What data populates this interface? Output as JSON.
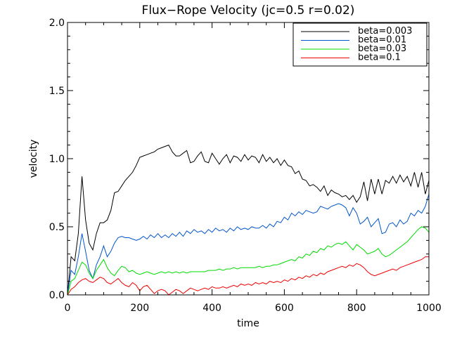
{
  "chart_data": {
    "type": "line",
    "title": "Flux−Rope Velocity (jc=0.5 r=0.02)",
    "xlabel": "time",
    "ylabel": "velocity",
    "xlim": [
      0,
      1000
    ],
    "ylim": [
      0,
      2
    ],
    "x_ticks": [
      0,
      200,
      400,
      600,
      800,
      1000
    ],
    "x_tick_labels": [
      "0",
      "200",
      "400",
      "600",
      "800",
      "1000"
    ],
    "y_ticks": [
      0,
      0.5,
      1,
      1.5,
      2
    ],
    "y_tick_labels": [
      "0.0",
      "0.5",
      "1.0",
      "1.5",
      "2.0"
    ],
    "legend_position": "top-right",
    "series": [
      {
        "name": "beta=0.003",
        "color": "#000000",
        "x": [
          0,
          10,
          20,
          30,
          40,
          50,
          60,
          70,
          80,
          90,
          100,
          110,
          120,
          130,
          140,
          150,
          160,
          170,
          180,
          190,
          200,
          210,
          220,
          230,
          240,
          250,
          260,
          270,
          280,
          290,
          300,
          310,
          320,
          330,
          340,
          350,
          360,
          370,
          380,
          390,
          400,
          410,
          420,
          430,
          440,
          450,
          460,
          470,
          480,
          490,
          500,
          510,
          520,
          530,
          540,
          550,
          560,
          570,
          580,
          590,
          600,
          610,
          620,
          630,
          640,
          650,
          660,
          670,
          680,
          690,
          700,
          710,
          720,
          730,
          740,
          750,
          760,
          770,
          780,
          790,
          800,
          810,
          820,
          830,
          840,
          850,
          860,
          870,
          880,
          890,
          900,
          910,
          920,
          930,
          940,
          950,
          960,
          970,
          980,
          990,
          1000
        ],
        "y": [
          0.0,
          0.28,
          0.25,
          0.45,
          0.87,
          0.55,
          0.38,
          0.33,
          0.45,
          0.53,
          0.53,
          0.55,
          0.62,
          0.75,
          0.76,
          0.8,
          0.84,
          0.87,
          0.9,
          0.95,
          1.01,
          1.02,
          1.03,
          1.04,
          1.05,
          1.07,
          1.08,
          1.09,
          1.1,
          1.05,
          1.02,
          1.02,
          1.04,
          1.06,
          0.97,
          0.98,
          1.02,
          1.05,
          0.98,
          0.97,
          1.04,
          1.0,
          0.96,
          1.0,
          1.03,
          0.97,
          1.02,
          1.01,
          0.98,
          1.03,
          0.99,
          1.02,
          1.01,
          0.97,
          1.03,
          0.98,
          1.01,
          0.97,
          1.0,
          0.95,
          0.99,
          0.95,
          0.94,
          0.89,
          0.91,
          0.85,
          0.84,
          0.8,
          0.81,
          0.79,
          0.76,
          0.8,
          0.73,
          0.77,
          0.75,
          0.74,
          0.72,
          0.73,
          0.7,
          0.73,
          0.68,
          0.72,
          0.83,
          0.69,
          0.85,
          0.74,
          0.85,
          0.74,
          0.84,
          0.82,
          0.87,
          0.82,
          0.88,
          0.83,
          0.87,
          0.8,
          0.9,
          0.79,
          0.9,
          0.74,
          0.84
        ]
      },
      {
        "name": "beta=0.01",
        "color": "#0055cc",
        "x": [
          0,
          10,
          20,
          30,
          40,
          50,
          60,
          70,
          80,
          90,
          100,
          110,
          120,
          130,
          140,
          150,
          160,
          170,
          180,
          190,
          200,
          210,
          220,
          230,
          240,
          250,
          260,
          270,
          280,
          290,
          300,
          310,
          320,
          330,
          340,
          350,
          360,
          370,
          380,
          390,
          400,
          410,
          420,
          430,
          440,
          450,
          460,
          470,
          480,
          490,
          500,
          510,
          520,
          530,
          540,
          550,
          560,
          570,
          580,
          590,
          600,
          610,
          620,
          630,
          640,
          650,
          660,
          670,
          680,
          690,
          700,
          710,
          720,
          730,
          740,
          750,
          760,
          770,
          780,
          790,
          800,
          810,
          820,
          830,
          840,
          850,
          860,
          870,
          880,
          890,
          900,
          910,
          920,
          930,
          940,
          950,
          960,
          970,
          980,
          990,
          1000
        ],
        "y": [
          0.0,
          0.18,
          0.15,
          0.28,
          0.45,
          0.32,
          0.18,
          0.12,
          0.22,
          0.28,
          0.36,
          0.28,
          0.32,
          0.38,
          0.42,
          0.43,
          0.42,
          0.42,
          0.41,
          0.4,
          0.41,
          0.43,
          0.41,
          0.44,
          0.42,
          0.45,
          0.42,
          0.44,
          0.42,
          0.45,
          0.43,
          0.46,
          0.43,
          0.47,
          0.45,
          0.48,
          0.46,
          0.47,
          0.45,
          0.48,
          0.46,
          0.49,
          0.47,
          0.48,
          0.46,
          0.49,
          0.47,
          0.5,
          0.48,
          0.49,
          0.48,
          0.5,
          0.49,
          0.49,
          0.51,
          0.49,
          0.52,
          0.5,
          0.54,
          0.53,
          0.57,
          0.55,
          0.6,
          0.58,
          0.61,
          0.59,
          0.62,
          0.61,
          0.6,
          0.61,
          0.65,
          0.64,
          0.63,
          0.65,
          0.66,
          0.67,
          0.66,
          0.64,
          0.58,
          0.64,
          0.6,
          0.52,
          0.54,
          0.57,
          0.5,
          0.53,
          0.56,
          0.45,
          0.46,
          0.52,
          0.53,
          0.5,
          0.55,
          0.52,
          0.54,
          0.6,
          0.58,
          0.62,
          0.6,
          0.65,
          0.74
        ]
      },
      {
        "name": "beta=0.03",
        "color": "#00dd00",
        "x": [
          0,
          10,
          20,
          30,
          40,
          50,
          60,
          70,
          80,
          90,
          100,
          110,
          120,
          130,
          140,
          150,
          160,
          170,
          180,
          190,
          200,
          210,
          220,
          230,
          240,
          250,
          260,
          270,
          280,
          290,
          300,
          310,
          320,
          330,
          340,
          350,
          360,
          370,
          380,
          390,
          400,
          410,
          420,
          430,
          440,
          450,
          460,
          470,
          480,
          490,
          500,
          510,
          520,
          530,
          540,
          550,
          560,
          570,
          580,
          590,
          600,
          610,
          620,
          630,
          640,
          650,
          660,
          670,
          680,
          690,
          700,
          710,
          720,
          730,
          740,
          750,
          760,
          770,
          780,
          790,
          800,
          810,
          820,
          830,
          840,
          850,
          860,
          870,
          880,
          890,
          900,
          910,
          920,
          930,
          940,
          950,
          960,
          970,
          980,
          990,
          1000
        ],
        "y": [
          0.0,
          0.1,
          0.12,
          0.18,
          0.24,
          0.22,
          0.16,
          0.12,
          0.18,
          0.22,
          0.26,
          0.2,
          0.16,
          0.14,
          0.18,
          0.21,
          0.2,
          0.17,
          0.18,
          0.16,
          0.15,
          0.16,
          0.17,
          0.16,
          0.15,
          0.16,
          0.17,
          0.16,
          0.17,
          0.16,
          0.17,
          0.16,
          0.17,
          0.16,
          0.17,
          0.17,
          0.17,
          0.17,
          0.17,
          0.18,
          0.18,
          0.18,
          0.19,
          0.18,
          0.19,
          0.19,
          0.2,
          0.19,
          0.2,
          0.2,
          0.2,
          0.2,
          0.2,
          0.21,
          0.2,
          0.21,
          0.21,
          0.22,
          0.22,
          0.23,
          0.24,
          0.25,
          0.26,
          0.25,
          0.28,
          0.27,
          0.3,
          0.29,
          0.32,
          0.31,
          0.34,
          0.33,
          0.36,
          0.35,
          0.37,
          0.38,
          0.37,
          0.39,
          0.36,
          0.33,
          0.37,
          0.35,
          0.33,
          0.3,
          0.31,
          0.32,
          0.34,
          0.3,
          0.28,
          0.29,
          0.31,
          0.33,
          0.35,
          0.37,
          0.39,
          0.42,
          0.45,
          0.48,
          0.5,
          0.49,
          0.46
        ]
      },
      {
        "name": "beta=0.1",
        "color": "#ee0000",
        "x": [
          0,
          10,
          20,
          30,
          40,
          50,
          60,
          70,
          80,
          90,
          100,
          110,
          120,
          130,
          140,
          150,
          160,
          170,
          180,
          190,
          200,
          210,
          220,
          230,
          240,
          250,
          260,
          270,
          280,
          290,
          300,
          310,
          320,
          330,
          340,
          350,
          360,
          370,
          380,
          390,
          400,
          410,
          420,
          430,
          440,
          450,
          460,
          470,
          480,
          490,
          500,
          510,
          520,
          530,
          540,
          550,
          560,
          570,
          580,
          590,
          600,
          610,
          620,
          630,
          640,
          650,
          660,
          670,
          680,
          690,
          700,
          710,
          720,
          730,
          740,
          750,
          760,
          770,
          780,
          790,
          800,
          810,
          820,
          830,
          840,
          850,
          860,
          870,
          880,
          890,
          900,
          910,
          920,
          930,
          940,
          950,
          960,
          970,
          980,
          990,
          1000
        ],
        "y": [
          0.0,
          0.04,
          0.06,
          0.09,
          0.11,
          0.12,
          0.1,
          0.09,
          0.11,
          0.13,
          0.12,
          0.09,
          0.08,
          0.1,
          0.12,
          0.09,
          0.07,
          0.06,
          0.09,
          0.07,
          0.03,
          0.06,
          0.07,
          0.04,
          0.01,
          0.03,
          0.04,
          0.03,
          0.0,
          0.02,
          0.04,
          0.03,
          0.01,
          0.03,
          0.05,
          0.04,
          0.03,
          0.04,
          0.05,
          0.04,
          0.06,
          0.05,
          0.05,
          0.06,
          0.05,
          0.06,
          0.07,
          0.06,
          0.08,
          0.07,
          0.08,
          0.07,
          0.09,
          0.08,
          0.09,
          0.08,
          0.1,
          0.09,
          0.1,
          0.09,
          0.11,
          0.1,
          0.12,
          0.11,
          0.13,
          0.12,
          0.14,
          0.13,
          0.15,
          0.14,
          0.16,
          0.15,
          0.17,
          0.18,
          0.19,
          0.2,
          0.21,
          0.2,
          0.22,
          0.21,
          0.23,
          0.22,
          0.2,
          0.17,
          0.15,
          0.14,
          0.15,
          0.16,
          0.17,
          0.18,
          0.19,
          0.18,
          0.2,
          0.21,
          0.22,
          0.23,
          0.24,
          0.25,
          0.26,
          0.28,
          0.28
        ]
      }
    ]
  }
}
